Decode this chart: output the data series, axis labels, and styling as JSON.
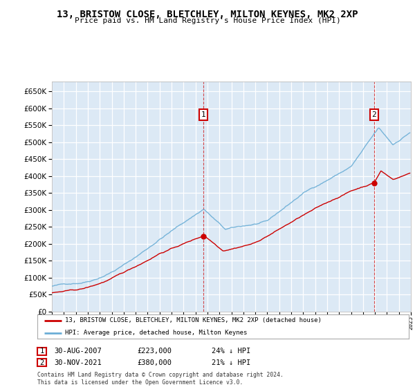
{
  "title": "13, BRISTOW CLOSE, BLETCHLEY, MILTON KEYNES, MK2 2XP",
  "subtitle": "Price paid vs. HM Land Registry's House Price Index (HPI)",
  "bg_color": "#dce9f5",
  "grid_color": "#ffffff",
  "ylim": [
    0,
    680000
  ],
  "yticks": [
    0,
    50000,
    100000,
    150000,
    200000,
    250000,
    300000,
    350000,
    400000,
    450000,
    500000,
    550000,
    600000,
    650000
  ],
  "year_start": 1995,
  "year_end": 2025,
  "sale1_date_decimal": 2007.67,
  "sale1_price": 223000,
  "sale1_label": "1",
  "sale1_date_str": "30-AUG-2007",
  "sale1_hpi_pct": "24%",
  "sale2_date_decimal": 2021.92,
  "sale2_price": 380000,
  "sale2_label": "2",
  "sale2_date_str": "30-NOV-2021",
  "sale2_hpi_pct": "21%",
  "red_line_color": "#cc0000",
  "blue_line_color": "#6baed6",
  "legend_label1": "13, BRISTOW CLOSE, BLETCHLEY, MILTON KEYNES, MK2 2XP (detached house)",
  "legend_label2": "HPI: Average price, detached house, Milton Keynes",
  "footer": "Contains HM Land Registry data © Crown copyright and database right 2024.\nThis data is licensed under the Open Government Licence v3.0.",
  "marker_box_color": "#cc0000"
}
